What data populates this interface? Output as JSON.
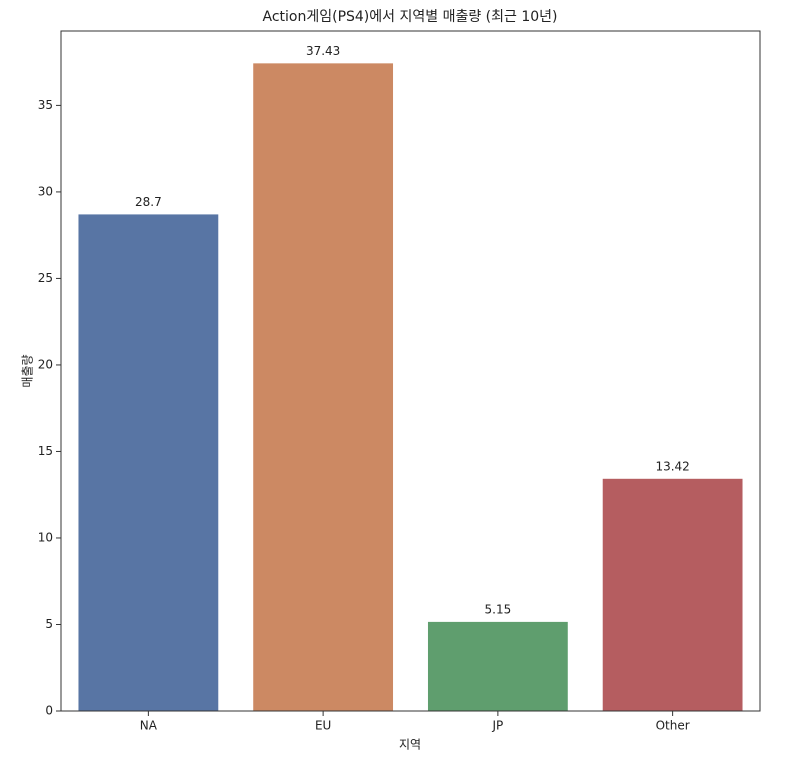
{
  "chart_data": {
    "type": "bar",
    "title": "Action게임(PS4)에서 지역별 매출량 (최근 10년)",
    "xlabel": "지역",
    "ylabel": "매출량",
    "categories": [
      "NA",
      "EU",
      "JP",
      "Other"
    ],
    "values": [
      28.7,
      37.43,
      5.15,
      13.42
    ],
    "colors": [
      "#5875a4",
      "#cc8963",
      "#5f9e6e",
      "#b55d60"
    ],
    "ylim": [
      0,
      39.3
    ],
    "yticks": [
      0,
      5,
      10,
      15,
      20,
      25,
      30,
      35
    ],
    "grid": false
  }
}
